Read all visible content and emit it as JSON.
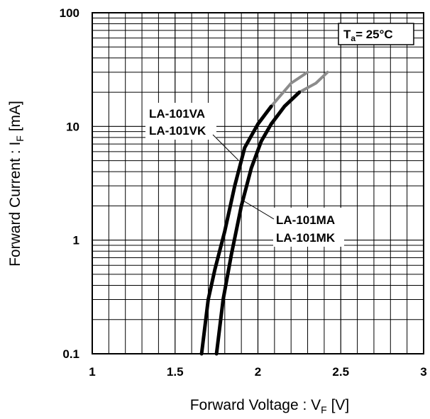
{
  "chart_data": {
    "type": "line",
    "title": "",
    "xlabel": {
      "main": "Forward Voltage : V",
      "sub": "F",
      "unit": " [V]"
    },
    "ylabel": {
      "main": "Forward Current : I",
      "sub": "F",
      "unit": " [mA]"
    },
    "xlim": [
      1,
      3
    ],
    "ylim": [
      0.1,
      100
    ],
    "yscale": "log",
    "grid": true,
    "x_ticks": [
      "1",
      "1.5",
      "2",
      "2.5",
      "3"
    ],
    "y_ticks": [
      "100",
      "10",
      "1",
      "0.1"
    ],
    "annotation": {
      "main": "T",
      "sub": "a",
      "rest": "= 25°C"
    },
    "series": [
      {
        "name": "LA-101VA / LA-101VK",
        "color": "#000000",
        "extension_color": "#8c8c8c",
        "points": [
          [
            1.66,
            0.1
          ],
          [
            1.7,
            0.3
          ],
          [
            1.74,
            0.55
          ],
          [
            1.8,
            1.2
          ],
          [
            1.86,
            3.0
          ],
          [
            1.92,
            6.5
          ],
          [
            2.0,
            10.5
          ],
          [
            2.08,
            15
          ]
        ],
        "extension": [
          [
            2.08,
            15
          ],
          [
            2.2,
            24
          ],
          [
            2.3,
            30
          ]
        ]
      },
      {
        "name": "LA-101MA / LA-101MK",
        "color": "#000000",
        "extension_color": "#8c8c8c",
        "points": [
          [
            1.75,
            0.1
          ],
          [
            1.79,
            0.3
          ],
          [
            1.84,
            0.75
          ],
          [
            1.9,
            2.0
          ],
          [
            1.96,
            4.3
          ],
          [
            2.02,
            7.4
          ],
          [
            2.08,
            10.5
          ],
          [
            2.16,
            15
          ],
          [
            2.25,
            20
          ]
        ],
        "extension": [
          [
            2.25,
            20
          ],
          [
            2.35,
            24
          ],
          [
            2.42,
            30
          ]
        ]
      }
    ],
    "labels": [
      {
        "lines": [
          "LA-101VA",
          "LA-101VK"
        ]
      },
      {
        "lines": [
          "LA-101MA",
          "LA-101MK"
        ]
      }
    ]
  }
}
